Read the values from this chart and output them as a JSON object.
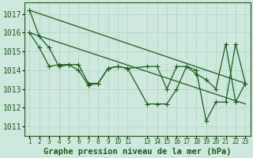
{
  "background_color": "#cde8dc",
  "grid_color": "#b0d8c8",
  "line_color": "#1a5c1a",
  "xlabel": "Graphe pression niveau de la mer (hPa)",
  "xlabel_fontsize": 7.5,
  "ylabel_fontsize": 7,
  "ylim": [
    1010.5,
    1017.6
  ],
  "yticks": [
    1011,
    1012,
    1013,
    1014,
    1015,
    1016,
    1017
  ],
  "xlim": [
    0.5,
    23.5
  ],
  "xtick_positions": [
    1,
    2,
    3,
    4,
    5,
    6,
    7,
    8,
    9,
    10,
    11,
    13,
    14,
    15,
    16,
    17,
    18,
    19,
    20,
    21,
    22,
    23
  ],
  "xticklabels": [
    "1",
    "2",
    "3",
    "4",
    "5",
    "6",
    "7",
    "8",
    "9",
    "10",
    "11",
    "13",
    "14",
    "15",
    "16",
    "17",
    "18",
    "19",
    "20",
    "21",
    "22",
    "23"
  ],
  "smooth_line1_x": [
    1,
    23
  ],
  "smooth_line1_y": [
    1017.2,
    1013.3
  ],
  "smooth_line2_x": [
    1,
    23
  ],
  "smooth_line2_y": [
    1016.0,
    1012.2
  ],
  "zigzag1_x": [
    1,
    2,
    3,
    4,
    5,
    6,
    7,
    8,
    9,
    10,
    11,
    13,
    14,
    15,
    16,
    17,
    18,
    19,
    20,
    21,
    22,
    23
  ],
  "zigzag1_y": [
    1016.0,
    1015.2,
    1014.2,
    1014.3,
    1014.3,
    1014.0,
    1013.2,
    1013.3,
    1014.1,
    1014.2,
    1014.1,
    1014.2,
    1014.2,
    1013.0,
    1014.2,
    1014.2,
    1013.8,
    1013.5,
    1013.0,
    1015.4,
    1012.3,
    1013.3
  ],
  "zigzag2_x": [
    1,
    2,
    3,
    4,
    5,
    6,
    7,
    8,
    9,
    10,
    11,
    13,
    14,
    15,
    16,
    17,
    18,
    19,
    20,
    21,
    22,
    23
  ],
  "zigzag2_y": [
    1017.2,
    1015.8,
    1015.2,
    1014.2,
    1014.3,
    1014.3,
    1013.3,
    1013.3,
    1014.1,
    1014.2,
    1014.1,
    1012.2,
    1012.2,
    1012.2,
    1013.0,
    1014.2,
    1014.0,
    1011.3,
    1012.3,
    1012.3,
    1015.4,
    1013.3
  ]
}
